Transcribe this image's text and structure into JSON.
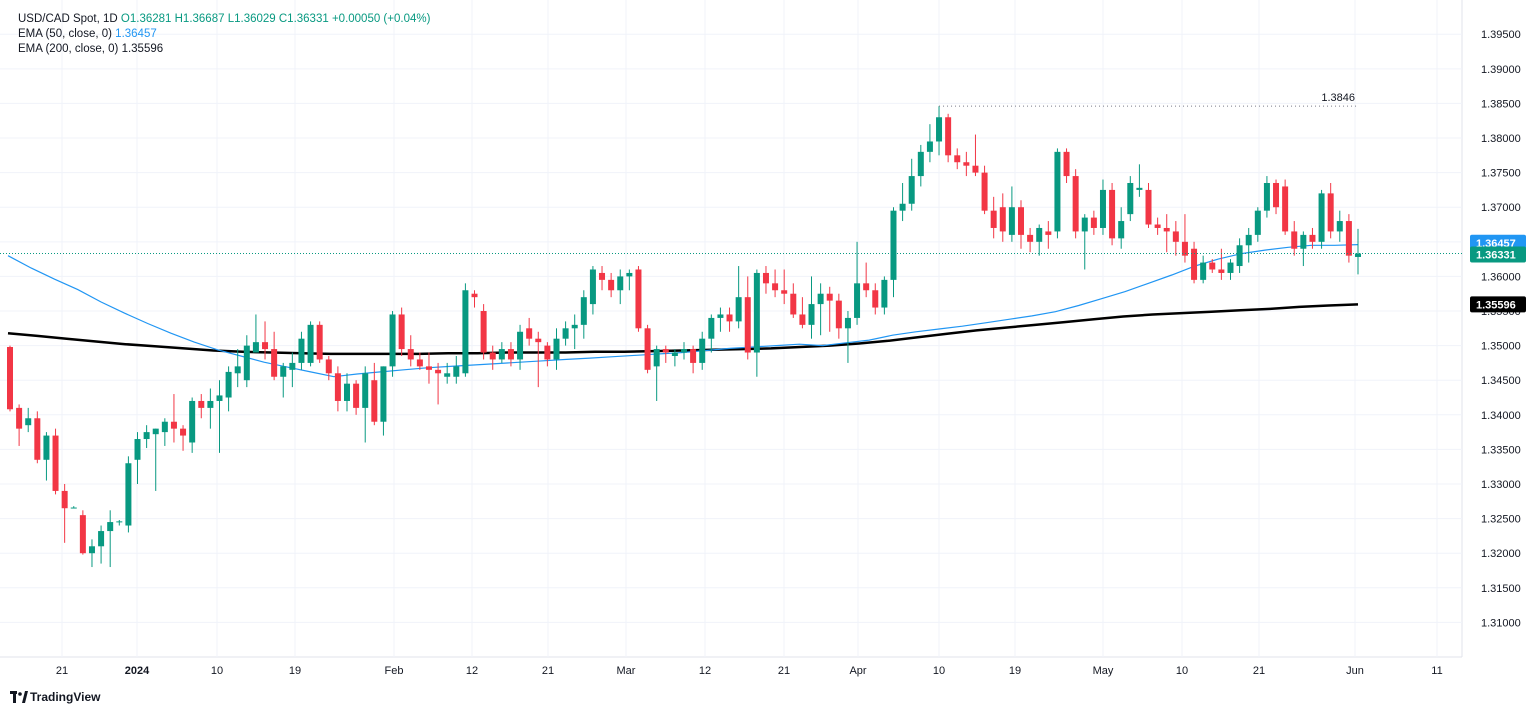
{
  "legend": {
    "symbol": "USD/CAD Spot, 1D",
    "open": "O1.36281",
    "high": "H1.36687",
    "low": "L1.36029",
    "close": "C1.36331",
    "change": "+0.00050 (+0.04%)",
    "ema50_label": "EMA (50, close, 0)",
    "ema50_value": "1.36457",
    "ema200_label": "EMA (200, close, 0)",
    "ema200_value": "1.35596"
  },
  "brand": {
    "name": "TradingView",
    "icon": "tradingview-logo-icon"
  },
  "colors": {
    "up": "#089981",
    "down": "#f23645",
    "ema50": "#2196f3",
    "ema200": "#000000"
  },
  "chart_data": {
    "type": "candlestick",
    "x_ticks": [
      "21",
      "2024",
      "10",
      "19",
      "Feb",
      "12",
      "21",
      "Mar",
      "12",
      "21",
      "Apr",
      "10",
      "19",
      "May",
      "10",
      "21",
      "Jun",
      "11"
    ],
    "y_ticks": [
      "1.39500",
      "1.39000",
      "1.38500",
      "1.38000",
      "1.37500",
      "1.37000",
      "1.36500",
      "1.36000",
      "1.35500",
      "1.35000",
      "1.34500",
      "1.34000",
      "1.33500",
      "1.33000",
      "1.32500",
      "1.32000",
      "1.31500",
      "1.31000"
    ],
    "ylim": [
      1.305,
      1.3985
    ],
    "high_annotation": "1.3846",
    "price_labels": {
      "ema50": "1.36457",
      "last": "1.36331",
      "ema200": "1.35596"
    },
    "last_close": 1.36331,
    "ema50_last": 1.36457,
    "ema200_last": 1.35596,
    "ohlc": [
      [
        1.3498,
        1.35,
        1.3405,
        1.3408
      ],
      [
        1.341,
        1.3415,
        1.3355,
        1.338
      ],
      [
        1.3385,
        1.341,
        1.3375,
        1.3395
      ],
      [
        1.3395,
        1.3405,
        1.333,
        1.3335
      ],
      [
        1.3335,
        1.3375,
        1.3305,
        1.337
      ],
      [
        1.337,
        1.338,
        1.3285,
        1.329
      ],
      [
        1.329,
        1.33,
        1.3215,
        1.3265
      ],
      [
        1.3265,
        1.3268,
        1.3265,
        1.3266
      ],
      [
        1.3255,
        1.3262,
        1.3198,
        1.32
      ],
      [
        1.32,
        1.322,
        1.318,
        1.321
      ],
      [
        1.321,
        1.324,
        1.3185,
        1.3232
      ],
      [
        1.3232,
        1.3262,
        1.318,
        1.3245
      ],
      [
        1.3245,
        1.3248,
        1.324,
        1.3246
      ],
      [
        1.324,
        1.334,
        1.323,
        1.333
      ],
      [
        1.3335,
        1.3375,
        1.33,
        1.3365
      ],
      [
        1.3365,
        1.3385,
        1.3352,
        1.3375
      ],
      [
        1.3372,
        1.338,
        1.329,
        1.338
      ],
      [
        1.3375,
        1.3395,
        1.3355,
        1.339
      ],
      [
        1.339,
        1.343,
        1.336,
        1.338
      ],
      [
        1.338,
        1.3385,
        1.3348,
        1.337
      ],
      [
        1.336,
        1.3425,
        1.3345,
        1.342
      ],
      [
        1.342,
        1.343,
        1.3395,
        1.341
      ],
      [
        1.341,
        1.3438,
        1.338,
        1.342
      ],
      [
        1.342,
        1.345,
        1.3345,
        1.3428
      ],
      [
        1.3425,
        1.347,
        1.3405,
        1.3462
      ],
      [
        1.346,
        1.3495,
        1.344,
        1.347
      ],
      [
        1.345,
        1.3515,
        1.344,
        1.35
      ],
      [
        1.349,
        1.3545,
        1.349,
        1.3505
      ],
      [
        1.3505,
        1.3535,
        1.348,
        1.3495
      ],
      [
        1.3495,
        1.352,
        1.345,
        1.3455
      ],
      [
        1.3455,
        1.3475,
        1.3425,
        1.347
      ],
      [
        1.3465,
        1.349,
        1.344,
        1.3475
      ],
      [
        1.3475,
        1.352,
        1.3465,
        1.351
      ],
      [
        1.3475,
        1.3535,
        1.347,
        1.353
      ],
      [
        1.353,
        1.3535,
        1.3475,
        1.348
      ],
      [
        1.348,
        1.3485,
        1.345,
        1.346
      ],
      [
        1.346,
        1.347,
        1.3405,
        1.342
      ],
      [
        1.342,
        1.346,
        1.3405,
        1.3445
      ],
      [
        1.3445,
        1.345,
        1.34,
        1.341
      ],
      [
        1.341,
        1.347,
        1.336,
        1.346
      ],
      [
        1.345,
        1.3475,
        1.3385,
        1.339
      ],
      [
        1.339,
        1.347,
        1.337,
        1.347
      ],
      [
        1.347,
        1.355,
        1.3455,
        1.3545
      ],
      [
        1.3545,
        1.3555,
        1.3485,
        1.3495
      ],
      [
        1.3495,
        1.3515,
        1.347,
        1.348
      ],
      [
        1.348,
        1.349,
        1.3465,
        1.347
      ],
      [
        1.347,
        1.349,
        1.3445,
        1.3465
      ],
      [
        1.3465,
        1.3475,
        1.3415,
        1.346
      ],
      [
        1.3455,
        1.3475,
        1.3445,
        1.346
      ],
      [
        1.3455,
        1.3485,
        1.3445,
        1.347
      ],
      [
        1.346,
        1.359,
        1.3455,
        1.358
      ],
      [
        1.3575,
        1.358,
        1.3555,
        1.357
      ],
      [
        1.355,
        1.356,
        1.348,
        1.349
      ],
      [
        1.349,
        1.35,
        1.3465,
        1.348
      ],
      [
        1.348,
        1.3505,
        1.3475,
        1.3495
      ],
      [
        1.3495,
        1.3505,
        1.347,
        1.348
      ],
      [
        1.348,
        1.353,
        1.3465,
        1.352
      ],
      [
        1.3525,
        1.354,
        1.35,
        1.351
      ],
      [
        1.351,
        1.352,
        1.344,
        1.3505
      ],
      [
        1.35,
        1.3505,
        1.347,
        1.348
      ],
      [
        1.348,
        1.3525,
        1.3465,
        1.351
      ],
      [
        1.351,
        1.3535,
        1.35,
        1.3525
      ],
      [
        1.3525,
        1.3545,
        1.3495,
        1.353
      ],
      [
        1.353,
        1.358,
        1.351,
        1.357
      ],
      [
        1.356,
        1.3615,
        1.3545,
        1.361
      ],
      [
        1.3605,
        1.3615,
        1.358,
        1.3595
      ],
      [
        1.3595,
        1.3605,
        1.357,
        1.358
      ],
      [
        1.358,
        1.361,
        1.356,
        1.36
      ],
      [
        1.36,
        1.361,
        1.358,
        1.3605
      ],
      [
        1.361,
        1.3615,
        1.352,
        1.3525
      ],
      [
        1.3525,
        1.353,
        1.346,
        1.3465
      ],
      [
        1.347,
        1.35,
        1.342,
        1.3495
      ],
      [
        1.3495,
        1.35,
        1.3475,
        1.349
      ],
      [
        1.3485,
        1.3495,
        1.347,
        1.349
      ],
      [
        1.349,
        1.3505,
        1.348,
        1.3495
      ],
      [
        1.3495,
        1.35,
        1.346,
        1.3475
      ],
      [
        1.3475,
        1.352,
        1.3465,
        1.351
      ],
      [
        1.351,
        1.3545,
        1.349,
        1.354
      ],
      [
        1.354,
        1.3555,
        1.352,
        1.3545
      ],
      [
        1.3545,
        1.3555,
        1.352,
        1.3535
      ],
      [
        1.3535,
        1.3615,
        1.3525,
        1.357
      ],
      [
        1.357,
        1.36,
        1.348,
        1.349
      ],
      [
        1.349,
        1.361,
        1.3455,
        1.3605
      ],
      [
        1.3605,
        1.3615,
        1.3575,
        1.359
      ],
      [
        1.359,
        1.361,
        1.357,
        1.358
      ],
      [
        1.358,
        1.361,
        1.356,
        1.3575
      ],
      [
        1.3575,
        1.359,
        1.354,
        1.3545
      ],
      [
        1.3545,
        1.357,
        1.3525,
        1.353
      ],
      [
        1.353,
        1.36,
        1.351,
        1.356
      ],
      [
        1.356,
        1.359,
        1.3515,
        1.3575
      ],
      [
        1.3575,
        1.3585,
        1.352,
        1.3565
      ],
      [
        1.3565,
        1.3575,
        1.351,
        1.3525
      ],
      [
        1.3525,
        1.355,
        1.3475,
        1.354
      ],
      [
        1.354,
        1.365,
        1.353,
        1.359
      ],
      [
        1.359,
        1.362,
        1.357,
        1.358
      ],
      [
        1.358,
        1.359,
        1.3545,
        1.3555
      ],
      [
        1.3555,
        1.36,
        1.3545,
        1.3595
      ],
      [
        1.3595,
        1.37,
        1.357,
        1.3695
      ],
      [
        1.3695,
        1.3735,
        1.368,
        1.3705
      ],
      [
        1.3705,
        1.377,
        1.3695,
        1.3745
      ],
      [
        1.3745,
        1.379,
        1.373,
        1.378
      ],
      [
        1.378,
        1.382,
        1.3765,
        1.3795
      ],
      [
        1.3795,
        1.3846,
        1.3775,
        1.383
      ],
      [
        1.383,
        1.3835,
        1.3765,
        1.3775
      ],
      [
        1.3775,
        1.3785,
        1.3755,
        1.3765
      ],
      [
        1.3765,
        1.378,
        1.3745,
        1.376
      ],
      [
        1.376,
        1.3805,
        1.3745,
        1.375
      ],
      [
        1.375,
        1.376,
        1.369,
        1.3695
      ],
      [
        1.3695,
        1.3715,
        1.3655,
        1.367
      ],
      [
        1.37,
        1.372,
        1.365,
        1.3665
      ],
      [
        1.366,
        1.373,
        1.365,
        1.37
      ],
      [
        1.37,
        1.371,
        1.364,
        1.366
      ],
      [
        1.366,
        1.367,
        1.3635,
        1.365
      ],
      [
        1.365,
        1.3675,
        1.363,
        1.367
      ],
      [
        1.3665,
        1.368,
        1.364,
        1.366
      ],
      [
        1.3665,
        1.3785,
        1.3655,
        1.378
      ],
      [
        1.378,
        1.3785,
        1.3735,
        1.3745
      ],
      [
        1.3745,
        1.3755,
        1.3655,
        1.3665
      ],
      [
        1.3665,
        1.369,
        1.361,
        1.3685
      ],
      [
        1.3685,
        1.3695,
        1.366,
        1.367
      ],
      [
        1.367,
        1.374,
        1.366,
        1.3725
      ],
      [
        1.3725,
        1.3735,
        1.3645,
        1.3655
      ],
      [
        1.3655,
        1.37,
        1.364,
        1.368
      ],
      [
        1.369,
        1.3745,
        1.368,
        1.3735
      ],
      [
        1.3725,
        1.3762,
        1.3715,
        1.3728
      ],
      [
        1.3725,
        1.3735,
        1.367,
        1.3675
      ],
      [
        1.3675,
        1.3685,
        1.366,
        1.367
      ],
      [
        1.367,
        1.369,
        1.3635,
        1.3665
      ],
      [
        1.3665,
        1.368,
        1.363,
        1.365
      ],
      [
        1.365,
        1.369,
        1.362,
        1.363
      ],
      [
        1.364,
        1.365,
        1.359,
        1.3595
      ],
      [
        1.3595,
        1.363,
        1.359,
        1.362
      ],
      [
        1.362,
        1.3625,
        1.3605,
        1.361
      ],
      [
        1.361,
        1.364,
        1.3595,
        1.3605
      ],
      [
        1.3605,
        1.3625,
        1.3595,
        1.362
      ],
      [
        1.3615,
        1.3655,
        1.3605,
        1.3645
      ],
      [
        1.3645,
        1.367,
        1.362,
        1.366
      ],
      [
        1.366,
        1.37,
        1.365,
        1.3695
      ],
      [
        1.3695,
        1.3745,
        1.3685,
        1.3735
      ],
      [
        1.3735,
        1.374,
        1.369,
        1.37
      ],
      [
        1.373,
        1.374,
        1.366,
        1.3665
      ],
      [
        1.3665,
        1.368,
        1.363,
        1.364
      ],
      [
        1.364,
        1.3665,
        1.3615,
        1.366
      ],
      [
        1.366,
        1.367,
        1.364,
        1.365
      ],
      [
        1.365,
        1.3725,
        1.364,
        1.372
      ],
      [
        1.372,
        1.3735,
        1.3655,
        1.3665
      ],
      [
        1.3665,
        1.3695,
        1.365,
        1.368
      ],
      [
        1.368,
        1.369,
        1.362,
        1.363
      ],
      [
        1.36281,
        1.36687,
        1.36029,
        1.36331
      ]
    ],
    "ema50": [
      1.363,
      1.3612,
      1.3596,
      1.3581,
      1.3563,
      1.3547,
      1.3532,
      1.3518,
      1.3505,
      1.3494,
      1.3485,
      1.3476,
      1.3469,
      1.3462,
      1.3455,
      1.3459,
      1.3462,
      1.3465,
      1.3468,
      1.347,
      1.3472,
      1.3474,
      1.3476,
      1.3478,
      1.348,
      1.3482,
      1.3484,
      1.3486,
      1.3488,
      1.349,
      1.3493,
      1.3496,
      1.3498,
      1.35,
      1.3502,
      1.35,
      1.3504,
      1.3508,
      1.3515,
      1.352,
      1.3524,
      1.3528,
      1.3533,
      1.3538,
      1.3543,
      1.3549,
      1.3558,
      1.3568,
      1.3578,
      1.359,
      1.3602,
      1.3615,
      1.3625,
      1.3633,
      1.3638,
      1.3642,
      1.3645,
      1.3645,
      1.3646
    ],
    "ema200": [
      1.3518,
      1.3514,
      1.351,
      1.3506,
      1.3502,
      1.3499,
      1.3496,
      1.3493,
      1.3491,
      1.349,
      1.3489,
      1.3488,
      1.3488,
      1.3488,
      1.3488,
      1.3489,
      1.3489,
      1.349,
      1.349,
      1.349,
      1.3491,
      1.3491,
      1.3492,
      1.3493,
      1.3494,
      1.3495,
      1.3496,
      1.3498,
      1.35,
      1.3503,
      1.3507,
      1.3512,
      1.3517,
      1.3522,
      1.3526,
      1.353,
      1.3534,
      1.3538,
      1.3542,
      1.3545,
      1.3547,
      1.3549,
      1.3551,
      1.3553,
      1.3556,
      1.3558,
      1.35596
    ]
  }
}
